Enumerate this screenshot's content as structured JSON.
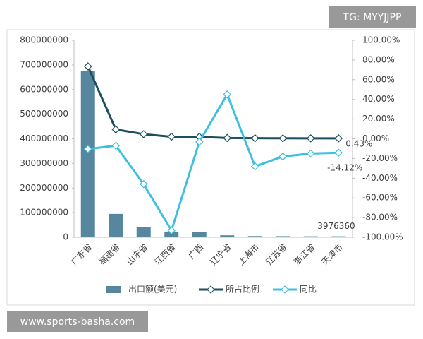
{
  "chart_data": {
    "type": "bar-line",
    "annotations": [
      "TG: MYYJJPP",
      "www.sports-basha.com"
    ],
    "categories": [
      "广东省",
      "福建省",
      "山东省",
      "江西省",
      "广西",
      "辽宁省",
      "上海市",
      "江苏省",
      "浙江省",
      "天津市"
    ],
    "series": [
      {
        "name": "出口额(美元)",
        "type": "bar",
        "color": "#56879f",
        "values": [
          676000000,
          95000000,
          43000000,
          23000000,
          22000000,
          8000000,
          5000000,
          4500000,
          4000000,
          3976360
        ]
      },
      {
        "name": "所占比例",
        "type": "line",
        "axis": "y2",
        "color": "#1d4f5e",
        "values": [
          73.5,
          9.5,
          4.7,
          2.1,
          2.0,
          0.8,
          0.6,
          0.5,
          0.45,
          0.43
        ],
        "value_labels": [
          null,
          null,
          null,
          null,
          null,
          null,
          null,
          null,
          null,
          "0.43%"
        ]
      },
      {
        "name": "同比",
        "type": "line",
        "axis": "y2",
        "color": "#3fbfdf",
        "values": [
          -10.4,
          -7,
          -46,
          -93,
          -3,
          45,
          -28,
          -18,
          -15,
          -14.12
        ],
        "value_labels": [
          null,
          null,
          null,
          null,
          null,
          null,
          null,
          null,
          null,
          "-14.12%"
        ]
      }
    ],
    "ylim": [
      0,
      800000000
    ],
    "yticks": [
      0,
      100000000,
      200000000,
      300000000,
      400000000,
      500000000,
      600000000,
      700000000,
      800000000
    ],
    "y2lim": [
      -100,
      100
    ],
    "y2ticks": [
      {
        "value": -100,
        "label": "-100.00%"
      },
      {
        "value": -80,
        "label": "-80.00%"
      },
      {
        "value": -60,
        "label": "-60.00%"
      },
      {
        "value": -40,
        "label": "-40.00%"
      },
      {
        "value": -20,
        "label": "-20.00%"
      },
      {
        "value": 0,
        "label": "0.00%"
      },
      {
        "value": 20,
        "label": "20.00%"
      },
      {
        "value": 40,
        "label": "40.00%"
      },
      {
        "value": 60,
        "label": "60.00%"
      },
      {
        "value": 80,
        "label": "80.00%"
      },
      {
        "value": 100,
        "label": "100.00%"
      }
    ],
    "legend": "bottom"
  }
}
